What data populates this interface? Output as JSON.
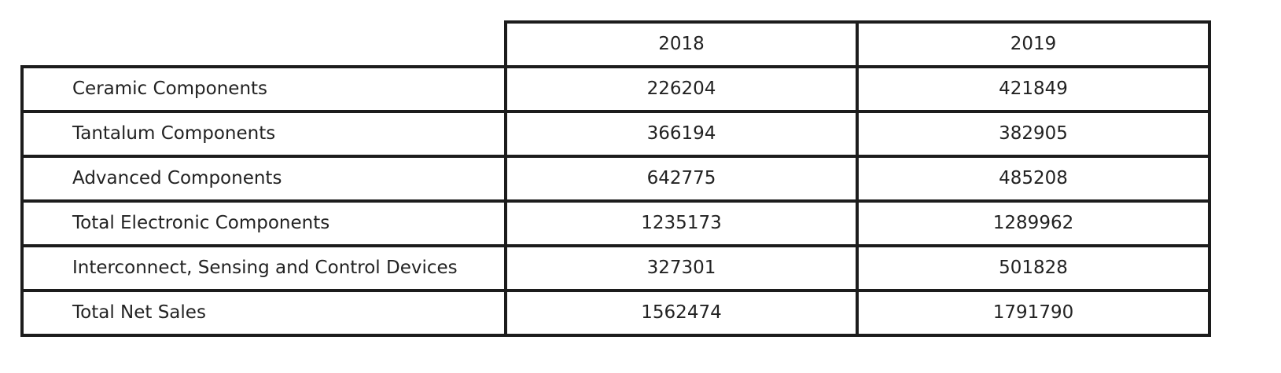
{
  "chart_data": {
    "type": "table",
    "columns": [
      "2018",
      "2019"
    ],
    "rows": [
      {
        "label": "Ceramic Components",
        "values": [
          226204,
          421849
        ]
      },
      {
        "label": "Tantalum Components",
        "values": [
          366194,
          382905
        ]
      },
      {
        "label": "Advanced Components",
        "values": [
          642775,
          485208
        ]
      },
      {
        "label": "Total Electronic Components",
        "values": [
          1235173,
          1289962
        ]
      },
      {
        "label": "Interconnect, Sensing and Control Devices",
        "values": [
          327301,
          501828
        ]
      },
      {
        "label": "Total Net Sales",
        "values": [
          1562474,
          1791790
        ]
      }
    ]
  }
}
